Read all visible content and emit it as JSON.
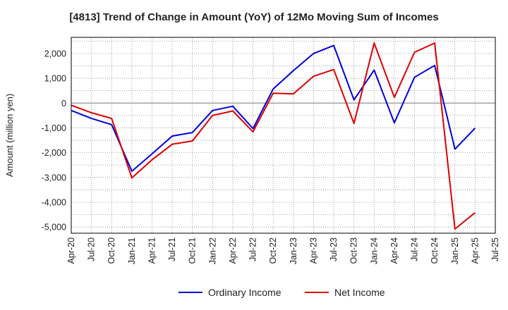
{
  "chart_data": {
    "type": "line",
    "title": "[4813]  Trend of Change in Amount (YoY) of 12Mo Moving Sum of Incomes",
    "ylabel": "Amount (million yen)",
    "xlabel": "",
    "ylim": [
      -5250,
      2650
    ],
    "yticks": [
      2000,
      1000,
      0,
      -1000,
      -2000,
      -3000,
      -4000,
      -5000
    ],
    "ytick_labels": [
      "2,000",
      "1,000",
      "0",
      "-1,000",
      "-2,000",
      "-3,000",
      "-4,000",
      "-5,000"
    ],
    "xtick_labels": [
      "Apr-20",
      "Jul-20",
      "Oct-20",
      "Jan-21",
      "Apr-21",
      "Jul-21",
      "Oct-21",
      "Jan-22",
      "Apr-22",
      "Jul-22",
      "Oct-22",
      "Jan-23",
      "Apr-23",
      "Jul-23",
      "Oct-23",
      "Jan-24",
      "Apr-24",
      "Jul-24",
      "Oct-24",
      "Jan-25",
      "Apr-25",
      "Jul-25"
    ],
    "x": [
      "Apr-20",
      "Jul-20",
      "Oct-20",
      "Jan-21",
      "Apr-21",
      "Jul-21",
      "Oct-21",
      "Jan-22",
      "Apr-22",
      "Jul-22",
      "Oct-22",
      "Jan-23",
      "Apr-23",
      "Jul-23",
      "Oct-23",
      "Jan-24",
      "Apr-24",
      "Jul-24",
      "Oct-24",
      "Jan-25",
      "Apr-25"
    ],
    "grid": true,
    "legend_position": "bottom-center",
    "series": [
      {
        "name": "Ordinary Income",
        "color": "#0000dd",
        "values": [
          -300,
          -620,
          -870,
          -2750,
          -2050,
          -1330,
          -1190,
          -300,
          -130,
          -1030,
          570,
          1310,
          2000,
          2320,
          130,
          1330,
          -800,
          1040,
          1520,
          -1860,
          -1010
        ]
      },
      {
        "name": "Net Income",
        "color": "#dd0000",
        "values": [
          -90,
          -390,
          -620,
          -3020,
          -2290,
          -1660,
          -1530,
          -500,
          -320,
          -1160,
          400,
          370,
          1080,
          1350,
          -820,
          2420,
          230,
          2050,
          2420,
          -5080,
          -4420
        ]
      }
    ]
  }
}
